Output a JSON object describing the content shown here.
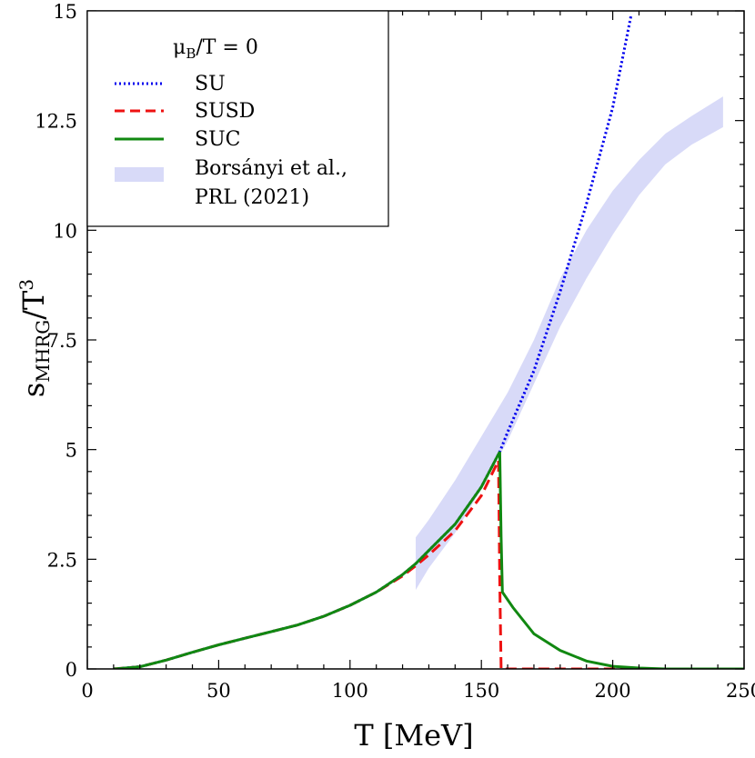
{
  "chart_data": {
    "type": "line",
    "title": "",
    "xlabel": "T [MeV]",
    "ylabel": "s_MHRG/T^3",
    "ylabel_parts": {
      "main": "s",
      "sub": "MHRG",
      "rest": "/T",
      "sup": "3"
    },
    "xlim": [
      0,
      250
    ],
    "ylim": [
      0,
      15
    ],
    "xticks": [
      0,
      50,
      100,
      150,
      200,
      250
    ],
    "yticks": [
      0,
      2.5,
      5,
      7.5,
      10,
      12.5,
      15
    ],
    "xtick_labels": [
      "0",
      "50",
      "100",
      "150",
      "200",
      "250"
    ],
    "ytick_labels": [
      "0",
      "2.5",
      "5",
      "7.5",
      "10",
      "12.5",
      "15"
    ],
    "grid": false,
    "legend": {
      "placement": "top-left",
      "title_parts": {
        "main": "μ",
        "sub": "B",
        "rest": "/T = 0"
      },
      "entries": [
        "SU",
        "SUSD",
        "SUC",
        "Borsányi et al.,",
        "PRL (2021)"
      ]
    },
    "series": [
      {
        "name": "SU",
        "style": "dotted",
        "color": "#0000ee",
        "x": [
          10,
          20,
          30,
          40,
          50,
          60,
          70,
          80,
          90,
          100,
          110,
          120,
          125,
          130,
          140,
          150,
          157,
          160,
          170,
          180,
          190,
          200,
          207
        ],
        "y": [
          0.0,
          0.05,
          0.2,
          0.38,
          0.55,
          0.7,
          0.85,
          1.0,
          1.2,
          1.45,
          1.75,
          2.15,
          2.4,
          2.7,
          3.3,
          4.15,
          4.95,
          5.4,
          6.8,
          8.6,
          10.6,
          12.8,
          14.9
        ]
      },
      {
        "name": "SUSD",
        "style": "dashed",
        "color": "#ee1111",
        "x": [
          10,
          20,
          30,
          40,
          50,
          60,
          70,
          80,
          90,
          100,
          110,
          120,
          125,
          130,
          140,
          150,
          156.5,
          157,
          157.5,
          250
        ],
        "y": [
          0.0,
          0.05,
          0.2,
          0.38,
          0.55,
          0.7,
          0.85,
          1.0,
          1.2,
          1.45,
          1.75,
          2.12,
          2.35,
          2.6,
          3.15,
          3.95,
          4.75,
          2.0,
          0.0,
          0.0
        ]
      },
      {
        "name": "SUC",
        "style": "solid",
        "color": "#118811",
        "x": [
          10,
          20,
          30,
          40,
          50,
          60,
          70,
          80,
          90,
          100,
          110,
          120,
          125,
          130,
          140,
          150,
          157,
          157.5,
          158,
          162,
          170,
          180,
          190,
          200,
          210,
          220,
          250
        ],
        "y": [
          0.0,
          0.05,
          0.2,
          0.38,
          0.55,
          0.7,
          0.85,
          1.0,
          1.2,
          1.45,
          1.75,
          2.15,
          2.4,
          2.7,
          3.3,
          4.15,
          4.95,
          3.0,
          1.75,
          1.4,
          0.8,
          0.42,
          0.18,
          0.06,
          0.02,
          0.0,
          0.0
        ]
      }
    ],
    "band": {
      "name": "Borsányi et al., PRL (2021)",
      "color": "#d8daf8",
      "x": [
        125,
        130,
        140,
        150,
        160,
        170,
        180,
        190,
        200,
        210,
        220,
        230,
        242
      ],
      "upper": [
        3.0,
        3.4,
        4.3,
        5.3,
        6.3,
        7.5,
        8.9,
        10.0,
        10.9,
        11.6,
        12.2,
        12.6,
        13.05
      ],
      "lower": [
        1.8,
        2.3,
        3.1,
        4.1,
        5.2,
        6.5,
        7.8,
        8.9,
        9.9,
        10.8,
        11.5,
        11.95,
        12.35
      ]
    }
  }
}
